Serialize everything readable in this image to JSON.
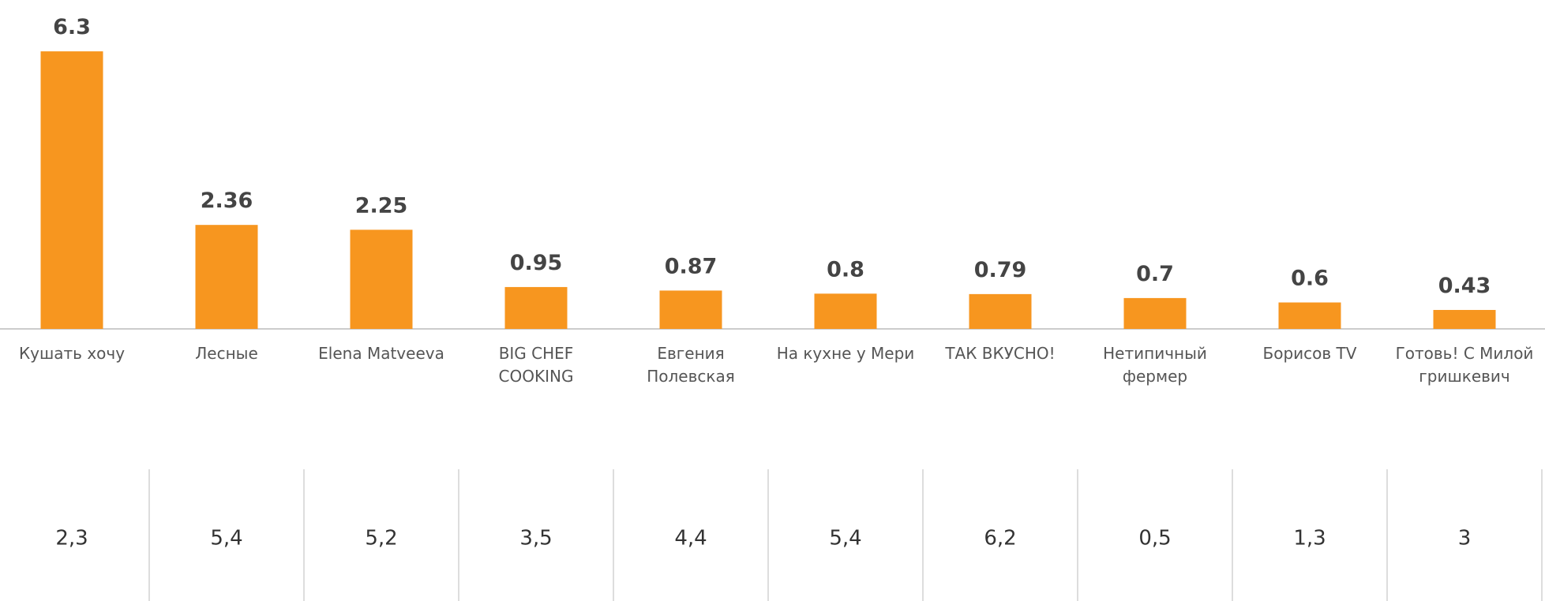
{
  "chart_data": {
    "type": "bar",
    "categories": [
      "Кушать хочу",
      "Лесные",
      "Elena Matveeva",
      "BIG CHEF COOKING",
      "Евгения Полевская",
      "На кухне у Мери",
      "ТАК ВКУСНО!",
      "Нетипичный фермер",
      "Борисов TV",
      "Готовь! С Милой гришкевич"
    ],
    "values": [
      6.3,
      2.36,
      2.25,
      0.95,
      0.87,
      0.8,
      0.79,
      0.7,
      0.6,
      0.43
    ],
    "color": "#f7961f",
    "ylim": [
      0,
      7
    ]
  },
  "table": {
    "values": [
      "2,3",
      "5,4",
      "5,2",
      "3,5",
      "4,4",
      "5,4",
      "6,2",
      "0,5",
      "1,3",
      "3"
    ]
  }
}
